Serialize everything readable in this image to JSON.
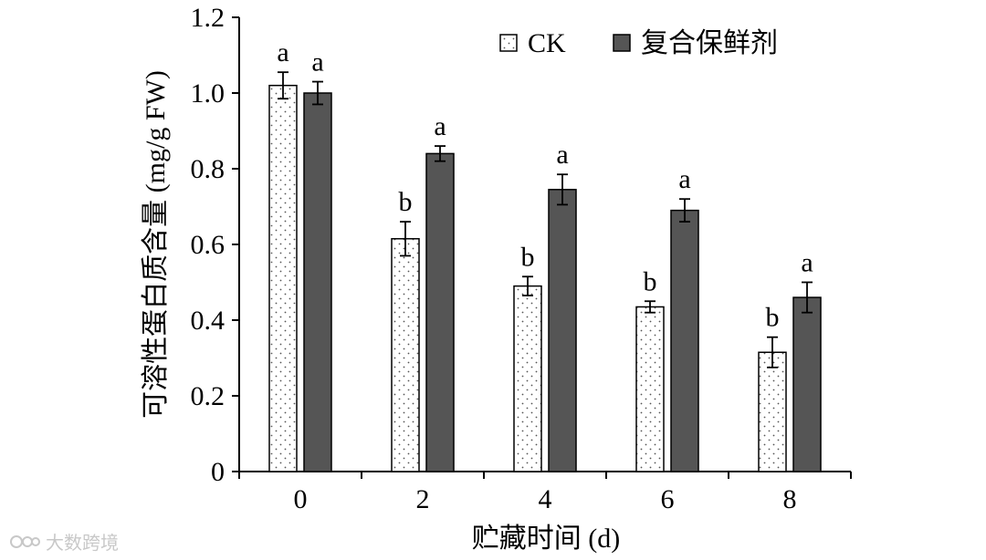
{
  "chart_data": {
    "type": "bar",
    "categories": [
      "0",
      "2",
      "4",
      "6",
      "8"
    ],
    "series": [
      {
        "name": "CK",
        "values": [
          1.02,
          0.615,
          0.49,
          0.435,
          0.315
        ],
        "errors": [
          0.035,
          0.045,
          0.025,
          0.015,
          0.04
        ],
        "labels": [
          "a",
          "b",
          "b",
          "b",
          "b"
        ],
        "fill": "dotted-white"
      },
      {
        "name": "复合保鲜剂",
        "values": [
          1.0,
          0.84,
          0.745,
          0.69,
          0.46
        ],
        "errors": [
          0.03,
          0.02,
          0.04,
          0.03,
          0.04
        ],
        "labels": [
          "a",
          "a",
          "a",
          "a",
          "a"
        ],
        "fill": "#555555"
      }
    ],
    "xlabel": "贮藏时间 (d)",
    "ylabel": "可溶性蛋白质含量 (mg/g FW)",
    "ylim": [
      0,
      1.2
    ],
    "yticks": [
      "0",
      "0.2",
      "0.4",
      "0.6",
      "0.8",
      "1.0",
      "1.2"
    ],
    "legend_position": "top-right",
    "grid": false
  },
  "watermark": {
    "text": "大数跨境"
  }
}
